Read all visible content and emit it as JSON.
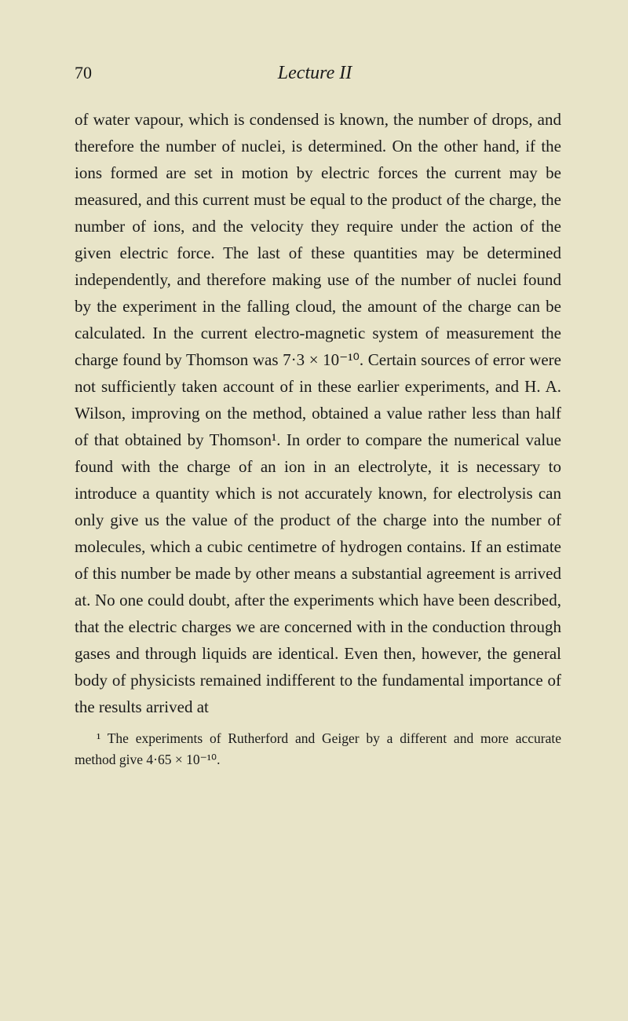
{
  "header": {
    "page_number": "70",
    "chapter_title": "Lecture II"
  },
  "body": {
    "paragraph": "of water vapour, which is condensed is known, the number of drops, and therefore the number of nuclei, is determined. On the other hand, if the ions formed are set in motion by electric forces the current may be measured, and this current must be equal to the product of the charge, the number of ions, and the velocity they require under the action of the given electric force. The last of these quantities may be determined independently, and therefore making use of the number of nuclei found by the experiment in the falling cloud, the amount of the charge can be calculated. In the current electro-magnetic system of measurement the charge found by Thomson was 7·3 × 10⁻¹⁰. Certain sources of error were not sufficiently taken account of in these earlier experiments, and H. A. Wilson, improving on the method, obtained a value rather less than half of that obtained by Thomson¹. In order to compare the numerical value found with the charge of an ion in an electrolyte, it is necessary to introduce a quantity which is not accurately known, for electrolysis can only give us the value of the product of the charge into the number of molecules, which a cubic centimetre of hydrogen contains. If an estimate of this number be made by other means a substantial agreement is arrived at. No one could doubt, after the experiments which have been described, that the electric charges we are concerned with in the conduction through gases and through liquids are identical. Even then, however, the general body of physicists remained indifferent to the fundamental importance of the results arrived at"
  },
  "footnote": {
    "text": "¹ The experiments of Rutherford and Geiger by a different and more accurate method give 4·65 × 10⁻¹⁰."
  },
  "styling": {
    "background_color": "#e8e4c8",
    "text_color": "#1a1a1a",
    "body_font_size": 21,
    "body_line_height": 1.62,
    "footnote_font_size": 17.5,
    "page_number_font_size": 22,
    "title_font_size": 24,
    "font_family": "Georgia, Times New Roman, serif"
  }
}
